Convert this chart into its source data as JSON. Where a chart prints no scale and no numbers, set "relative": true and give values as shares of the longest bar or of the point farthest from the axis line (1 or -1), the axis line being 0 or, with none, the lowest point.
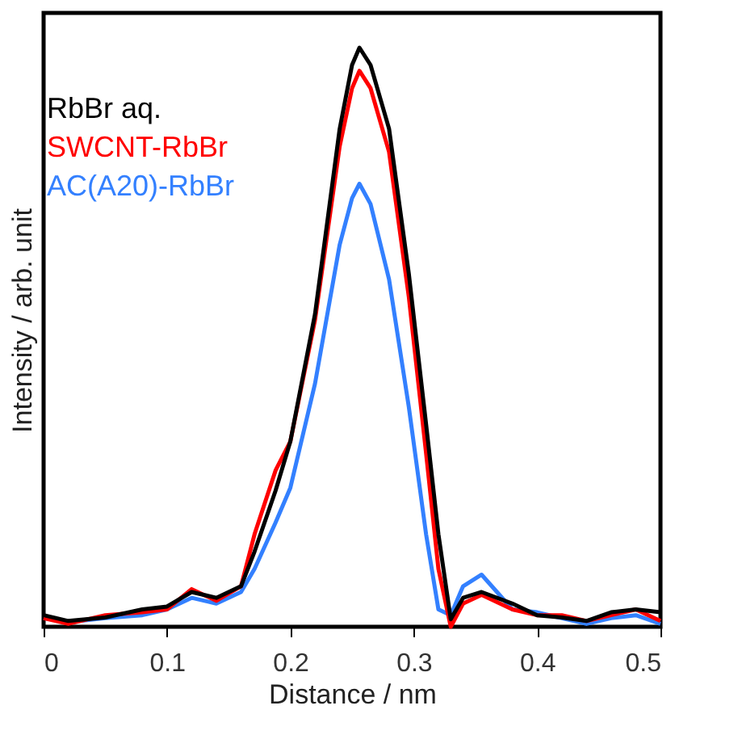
{
  "chart_data": {
    "type": "line",
    "relative": true,
    "xlabel": "Distance / nm",
    "ylabel": "Intensity / arb. unit",
    "x": [
      0,
      0.02,
      0.05,
      0.08,
      0.1,
      0.12,
      0.14,
      0.16,
      0.171,
      0.188,
      0.2,
      0.22,
      0.24,
      0.25,
      0.256,
      0.265,
      0.28,
      0.296,
      0.31,
      0.32,
      0.33,
      0.34,
      0.355,
      0.38,
      0.4,
      0.42,
      0.44,
      0.46,
      0.48,
      0.5
    ],
    "xlim": [
      0,
      0.5
    ],
    "xticks": [
      0,
      0.1,
      0.2,
      0.3,
      0.4,
      0.5
    ],
    "grid": false,
    "legend": "top left",
    "line_style": "solid",
    "marker": "none",
    "series": [
      {
        "name": "RbBr aq.",
        "color": "#000000",
        "values": [
          0.02,
          0.01,
          0.016,
          0.03,
          0.035,
          0.06,
          0.05,
          0.07,
          0.13,
          0.235,
          0.32,
          0.54,
          0.86,
          0.97,
          1.0,
          0.97,
          0.86,
          0.61,
          0.35,
          0.16,
          0.013,
          0.05,
          0.06,
          0.04,
          0.02,
          0.016,
          0.01,
          0.025,
          0.03,
          0.025
        ]
      },
      {
        "name": "SWCNT-RbBr",
        "color": "#ff0000",
        "values": [
          0.015,
          0.005,
          0.02,
          0.025,
          0.03,
          0.065,
          0.045,
          0.07,
          0.16,
          0.27,
          0.32,
          0.53,
          0.83,
          0.93,
          0.96,
          0.93,
          0.82,
          0.57,
          0.3,
          0.1,
          0.0,
          0.04,
          0.055,
          0.03,
          0.02,
          0.02,
          0.01,
          0.02,
          0.03,
          0.01
        ]
      },
      {
        "name": "AC(A20)-RbBr",
        "color": "#3380ff",
        "values": [
          0.015,
          0.008,
          0.015,
          0.02,
          0.03,
          0.05,
          0.04,
          0.06,
          0.1,
          0.18,
          0.24,
          0.42,
          0.66,
          0.74,
          0.765,
          0.73,
          0.6,
          0.38,
          0.16,
          0.03,
          0.02,
          0.07,
          0.09,
          0.03,
          0.025,
          0.015,
          0.005,
          0.015,
          0.02,
          0.005
        ]
      }
    ]
  }
}
